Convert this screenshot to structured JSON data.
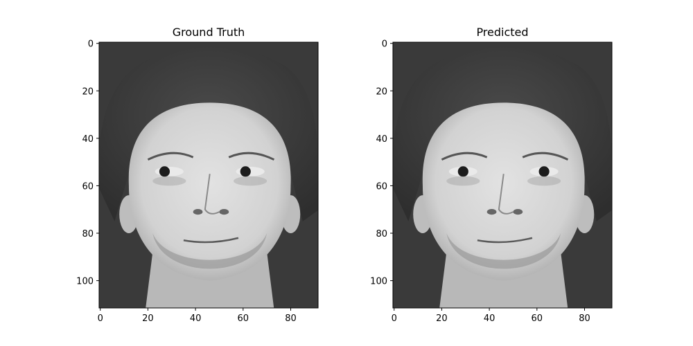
{
  "panels": [
    {
      "title": "Ground Truth",
      "x_ticks": [
        0,
        20,
        40,
        60,
        80
      ],
      "y_ticks": [
        0,
        20,
        40,
        60,
        80,
        100
      ],
      "x_range": [
        -0.5,
        91.5
      ],
      "y_range": [
        -0.5,
        111.5
      ],
      "colormap": "gray",
      "gaze": "averted-right"
    },
    {
      "title": "Predicted",
      "x_ticks": [
        0,
        20,
        40,
        60,
        80
      ],
      "y_ticks": [
        0,
        20,
        40,
        60,
        80,
        100
      ],
      "x_range": [
        -0.5,
        91.5
      ],
      "y_range": [
        -0.5,
        111.5
      ],
      "colormap": "gray",
      "gaze": "forward"
    }
  ],
  "colors": {
    "background": "#3a3a3a",
    "hair": "#2e2e2e",
    "skin": "#d2d2d2",
    "shadow": "#9a9a9a",
    "dark": "#1c1c1c"
  }
}
